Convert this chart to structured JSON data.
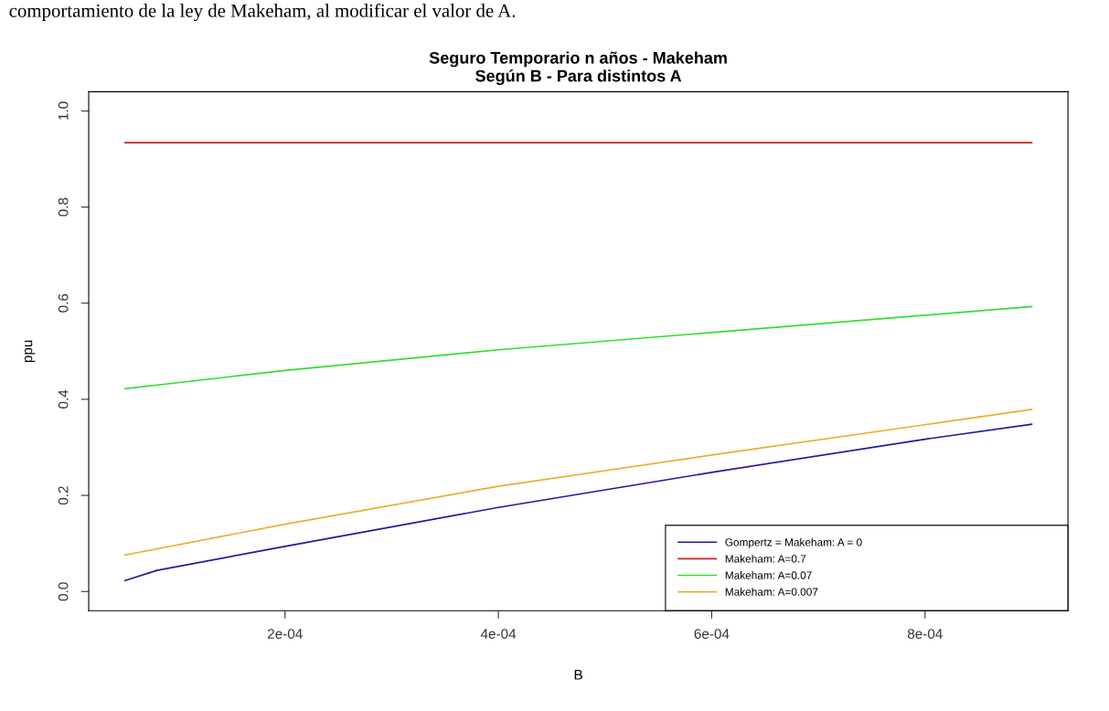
{
  "chart_data": {
    "type": "line",
    "title": "Seguro Temporario n años - Makeham\nSegún B - Para distintos A",
    "xlabel": "B",
    "ylabel": "ppu",
    "annotations": [
      "comportamiento de la ley de Makeham, al modificar el valor de A."
    ],
    "xlim": [
      1.6e-05,
      0.000934
    ],
    "ylim": [
      -0.04,
      1.04
    ],
    "xticks": [
      {
        "value": 0.0002,
        "label": "2e-04"
      },
      {
        "value": 0.0004,
        "label": "4e-04"
      },
      {
        "value": 0.0006,
        "label": "6e-04"
      },
      {
        "value": 0.0008,
        "label": "8e-04"
      }
    ],
    "yticks": [
      {
        "value": 0,
        "label": "0.0"
      },
      {
        "value": 0.2,
        "label": "0.2"
      },
      {
        "value": 0.4,
        "label": "0.4"
      },
      {
        "value": 0.6,
        "label": "0.6"
      },
      {
        "value": 0.8,
        "label": "0.8"
      },
      {
        "value": 1,
        "label": "1.0"
      }
    ],
    "grid": false,
    "legend": "bottom right",
    "marker": "none",
    "line_style": "solid",
    "series": [
      {
        "name": "Gompertz = Makeham: A = 0",
        "color": "#1c1ca0",
        "x": [
          5e-05,
          8e-05,
          0.0002,
          0.0004,
          0.0006,
          0.0008,
          0.0009
        ],
        "values": [
          0.023,
          0.044,
          0.094,
          0.175,
          0.248,
          0.317,
          0.348
        ]
      },
      {
        "name": "Makeham: A=0.7",
        "color": "#cc2222",
        "x": [
          5e-05,
          0.0009
        ],
        "values": [
          0.934,
          0.934
        ]
      },
      {
        "name": "Makeham: A=0.07",
        "color": "#33dd33",
        "x": [
          5e-05,
          0.0002,
          0.0004,
          0.0006,
          0.0008,
          0.0009
        ],
        "values": [
          0.422,
          0.46,
          0.503,
          0.539,
          0.575,
          0.593
        ]
      },
      {
        "name": "Makeham: A=0.007",
        "color": "#e8b030",
        "x": [
          5e-05,
          0.0002,
          0.0004,
          0.0006,
          0.0008,
          0.0009
        ],
        "values": [
          0.076,
          0.14,
          0.219,
          0.284,
          0.347,
          0.379
        ]
      }
    ]
  }
}
